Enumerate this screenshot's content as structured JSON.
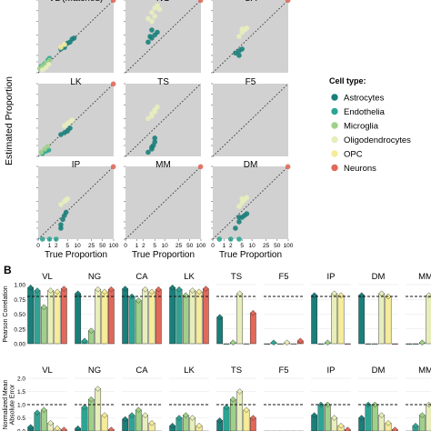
{
  "panel_b_label": "B",
  "colors": {
    "Astrocytes": "#1a7f7a",
    "Endothelia": "#2ea594",
    "Microglia": "#9fd089",
    "Oligodendrocytes": "#e8edbc",
    "OPC": "#f6ec9a",
    "Neurons": "#e1695a",
    "panel_bg": "#d1d1d1"
  },
  "legend": {
    "title": "Cell type:",
    "items": [
      "Astrocytes",
      "Endothelia",
      "Microglia",
      "Oligodendrocytes",
      "OPC",
      "Neurons"
    ]
  },
  "chart_data": [
    {
      "type": "scatter",
      "panel": "A",
      "facets": [
        "VL (Matched)",
        "NG",
        "CA",
        "LK",
        "TS",
        "F5",
        "IP",
        "MM",
        "DM"
      ],
      "xlabel": "True Proportion",
      "ylabel": "Estimated Proportion",
      "x_ticks": [
        "0",
        "1",
        "2",
        "5",
        "10",
        "25",
        "50",
        "100"
      ],
      "scale": "log1p",
      "reference_line": "y = x (dotted)",
      "series": [
        {
          "name": "Astrocytes",
          "points": {
            "VL (Matched)": [
              [
                3,
                3.5
              ],
              [
                4,
                4
              ],
              [
                5,
                5.5
              ],
              [
                6,
                6
              ],
              [
                7,
                7.5
              ],
              [
                8,
                8
              ]
            ],
            "NG": [
              [
                3,
                6
              ],
              [
                4,
                8
              ],
              [
                5,
                10
              ],
              [
                3.5,
                9
              ],
              [
                6,
                12
              ],
              [
                4,
                14
              ]
            ],
            "CA": [
              [
                3,
                2.5
              ],
              [
                4,
                3
              ],
              [
                5,
                3.5
              ],
              [
                4,
                2
              ]
            ],
            "LK": [
              [
                3,
                3
              ],
              [
                4,
                3.5
              ],
              [
                5,
                4
              ],
              [
                6,
                5
              ]
            ],
            "TS": [
              [
                3,
                0.3
              ],
              [
                4,
                0.6
              ],
              [
                4.5,
                1
              ],
              [
                5,
                1.5
              ],
              [
                5,
                2.2
              ],
              [
                4,
                0.8
              ]
            ],
            "F5": [],
            "IP": [
              [
                3,
                1.5
              ],
              [
                3.5,
                2.5
              ],
              [
                4,
                3.5
              ],
              [
                4.5,
                4.5
              ],
              [
                3,
                1
              ]
            ],
            "MM": [],
            "DM": [
              [
                3,
                1
              ],
              [
                4,
                2
              ],
              [
                5,
                3
              ],
              [
                6,
                3.5
              ],
              [
                7,
                4
              ],
              [
                4,
                3
              ]
            ]
          }
        },
        {
          "name": "Endothelia",
          "points": {
            "VL (Matched)": [
              [
                0.2,
                0.5
              ],
              [
                0.5,
                0.8
              ],
              [
                0.8,
                1.2
              ],
              [
                1,
                1.5
              ]
            ],
            "NG": [],
            "CA": [],
            "LK": [
              [
                0.3,
                0.2
              ],
              [
                0.6,
                0.4
              ],
              [
                0.9,
                0.5
              ]
            ],
            "TS": [],
            "F5": [],
            "IP": [
              [
                0.3,
                0
              ],
              [
                1,
                0
              ],
              [
                2,
                0
              ]
            ],
            "MM": [],
            "DM": [
              [
                0.5,
                0
              ],
              [
                2,
                0
              ],
              [
                4,
                0
              ]
            ]
          }
        },
        {
          "name": "Microglia",
          "points": {
            "VL (Matched)": [
              [
                0.1,
                0.3
              ],
              [
                0.3,
                0.5
              ],
              [
                0.6,
                0.9
              ],
              [
                1,
                1.2
              ]
            ],
            "NG": [],
            "CA": [],
            "LK": [
              [
                0.2,
                0.3
              ],
              [
                0.5,
                0.6
              ],
              [
                0.8,
                0.9
              ]
            ],
            "TS": [],
            "F5": [],
            "IP": [],
            "MM": [],
            "DM": []
          }
        },
        {
          "name": "Oligodendrocytes",
          "points": {
            "VL (Matched)": [
              [
                0.3,
                0.2
              ],
              [
                0.6,
                0.4
              ],
              [
                0.9,
                0.7
              ]
            ],
            "NG": [
              [
                3,
                30
              ],
              [
                4,
                45
              ],
              [
                5,
                60
              ],
              [
                6,
                70
              ],
              [
                5,
                35
              ],
              [
                4,
                25
              ],
              [
                7,
                55
              ]
            ],
            "CA": [
              [
                4,
                9
              ],
              [
                5,
                12
              ],
              [
                6,
                14
              ],
              [
                7,
                16
              ],
              [
                5,
                15
              ]
            ],
            "LK": [
              [
                4,
                6
              ],
              [
                5,
                7
              ],
              [
                6,
                8
              ],
              [
                7,
                9
              ]
            ],
            "TS": [
              [
                3,
                10
              ],
              [
                4,
                14
              ],
              [
                5,
                18
              ],
              [
                6,
                22
              ],
              [
                5,
                16
              ],
              [
                4,
                12
              ]
            ],
            "F5": [],
            "IP": [
              [
                3,
                8
              ],
              [
                4,
                10
              ],
              [
                5,
                12
              ],
              [
                4.5,
                11
              ]
            ],
            "MM": [],
            "DM": [
              [
                4,
                7
              ],
              [
                5,
                9
              ],
              [
                6,
                11
              ],
              [
                7,
                13
              ],
              [
                5,
                12
              ]
            ]
          }
        },
        {
          "name": "OPC",
          "points": {
            "VL (Matched)": [
              [
                3,
                4
              ],
              [
                4,
                5
              ]
            ],
            "NG": [],
            "CA": [],
            "LK": [],
            "TS": [],
            "F5": [],
            "IP": [],
            "MM": [],
            "DM": []
          }
        },
        {
          "name": "Neurons",
          "points": {
            "VL (Matched)": [
              [
                98,
                98
              ]
            ],
            "NG": [
              [
                98,
                98
              ]
            ],
            "CA": [
              [
                98,
                98
              ]
            ],
            "LK": [
              [
                98,
                98
              ]
            ],
            "TS": [],
            "F5": [],
            "IP": [
              [
                98,
                98
              ]
            ],
            "MM": [
              [
                98,
                98
              ]
            ],
            "DM": [
              [
                98,
                98
              ]
            ]
          }
        }
      ]
    },
    {
      "type": "bar",
      "panel": "B-top",
      "ylabel": "Pearson Correlation",
      "ylim": [
        0,
        1
      ],
      "y_ticks": [
        "0.00",
        "0.25",
        "0.50",
        "0.75",
        "1.00"
      ],
      "reference_line": 0.8,
      "categories": [
        "VL",
        "NG",
        "CA",
        "LK",
        "TS",
        "F5",
        "IP",
        "DM",
        "MM"
      ],
      "series": [
        {
          "name": "Astrocytes",
          "values": [
            0.95,
            0.85,
            0.93,
            0.95,
            0.45,
            0.0,
            0.82,
            0.82,
            0.0
          ]
        },
        {
          "name": "Endothelia",
          "values": [
            0.9,
            0.05,
            0.8,
            0.92,
            0.0,
            0.02,
            0.0,
            0.0,
            0.0
          ]
        },
        {
          "name": "Microglia",
          "values": [
            0.62,
            0.22,
            0.73,
            0.82,
            0.02,
            0.0,
            0.02,
            0.0,
            0.02
          ]
        },
        {
          "name": "Oligodendrocytes",
          "values": [
            0.9,
            0.92,
            0.92,
            0.9,
            0.85,
            0.02,
            0.85,
            0.85,
            0.82
          ]
        },
        {
          "name": "OPC",
          "values": [
            0.88,
            0.88,
            0.88,
            0.88,
            0.0,
            0.0,
            0.82,
            0.8,
            0.45
          ]
        },
        {
          "name": "Neurons",
          "values": [
            0.93,
            0.92,
            0.92,
            0.93,
            0.52,
            0.05,
            0.0,
            0.0,
            0.0
          ]
        }
      ]
    },
    {
      "type": "bar",
      "panel": "B-bottom",
      "ylabel": "Normalized Mean Absolute Error",
      "ylim": [
        0,
        2
      ],
      "y_ticks": [
        "0.0",
        "0.5",
        "1.0",
        "1.5",
        "2.0"
      ],
      "reference_line": 1.0,
      "categories": [
        "VL",
        "NG",
        "CA",
        "LK",
        "TS",
        "F5",
        "IP",
        "DM",
        "MM"
      ],
      "series": [
        {
          "name": "Astrocytes",
          "values": [
            0.15,
            0.1,
            0.45,
            0.2,
            0.4,
            0.0,
            0.6,
            0.5,
            0.0
          ]
        },
        {
          "name": "Endothelia",
          "values": [
            0.7,
            0.9,
            0.6,
            0.5,
            0.9,
            0.0,
            1.0,
            1.0,
            0.2
          ]
        },
        {
          "name": "Microglia",
          "values": [
            0.8,
            1.2,
            0.8,
            0.6,
            1.2,
            0.0,
            1.0,
            1.0,
            0.6
          ]
        },
        {
          "name": "Oligodendrocytes",
          "values": [
            0.3,
            1.6,
            0.6,
            0.5,
            1.5,
            0.0,
            0.5,
            0.6,
            1.0
          ]
        },
        {
          "name": "OPC",
          "values": [
            0.1,
            0.6,
            0.3,
            0.2,
            0.8,
            0.0,
            0.2,
            0.3,
            0.4
          ]
        },
        {
          "name": "Neurons",
          "values": [
            0.05,
            0.05,
            0.0,
            0.0,
            0.5,
            0.0,
            0.05,
            0.05,
            0.3
          ]
        }
      ]
    }
  ]
}
